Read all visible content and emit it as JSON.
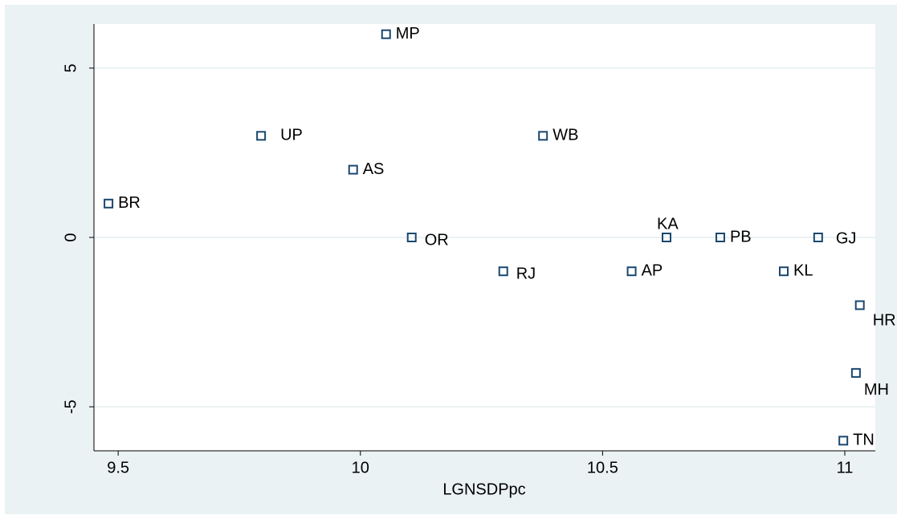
{
  "chart_data": {
    "type": "scatter",
    "x_label": "LGNSDPpc",
    "labels": [
      "MP",
      "UP",
      "AS",
      "WB",
      "BR",
      "OR",
      "RJ",
      "KA",
      "PB",
      "AP",
      "GJ",
      "KL",
      "HR",
      "MH",
      "TN"
    ],
    "x": [
      10.053,
      9.795,
      9.985,
      10.377,
      9.48,
      10.106,
      10.295,
      10.632,
      10.743,
      10.56,
      10.945,
      10.874,
      11.031,
      11.023,
      10.997
    ],
    "values": [
      6,
      3,
      2,
      3,
      1,
      0,
      -1,
      0,
      0,
      -1,
      0,
      -1,
      -2,
      -4,
      -6
    ],
    "color": "#1a476f",
    "xlim": [
      9.45,
      11.063
    ],
    "ylim": [
      -6.3,
      6.3
    ],
    "xticks": [
      9.5,
      10,
      10.5,
      11
    ],
    "yticks": [
      -5,
      0,
      5
    ],
    "grid": true
  }
}
